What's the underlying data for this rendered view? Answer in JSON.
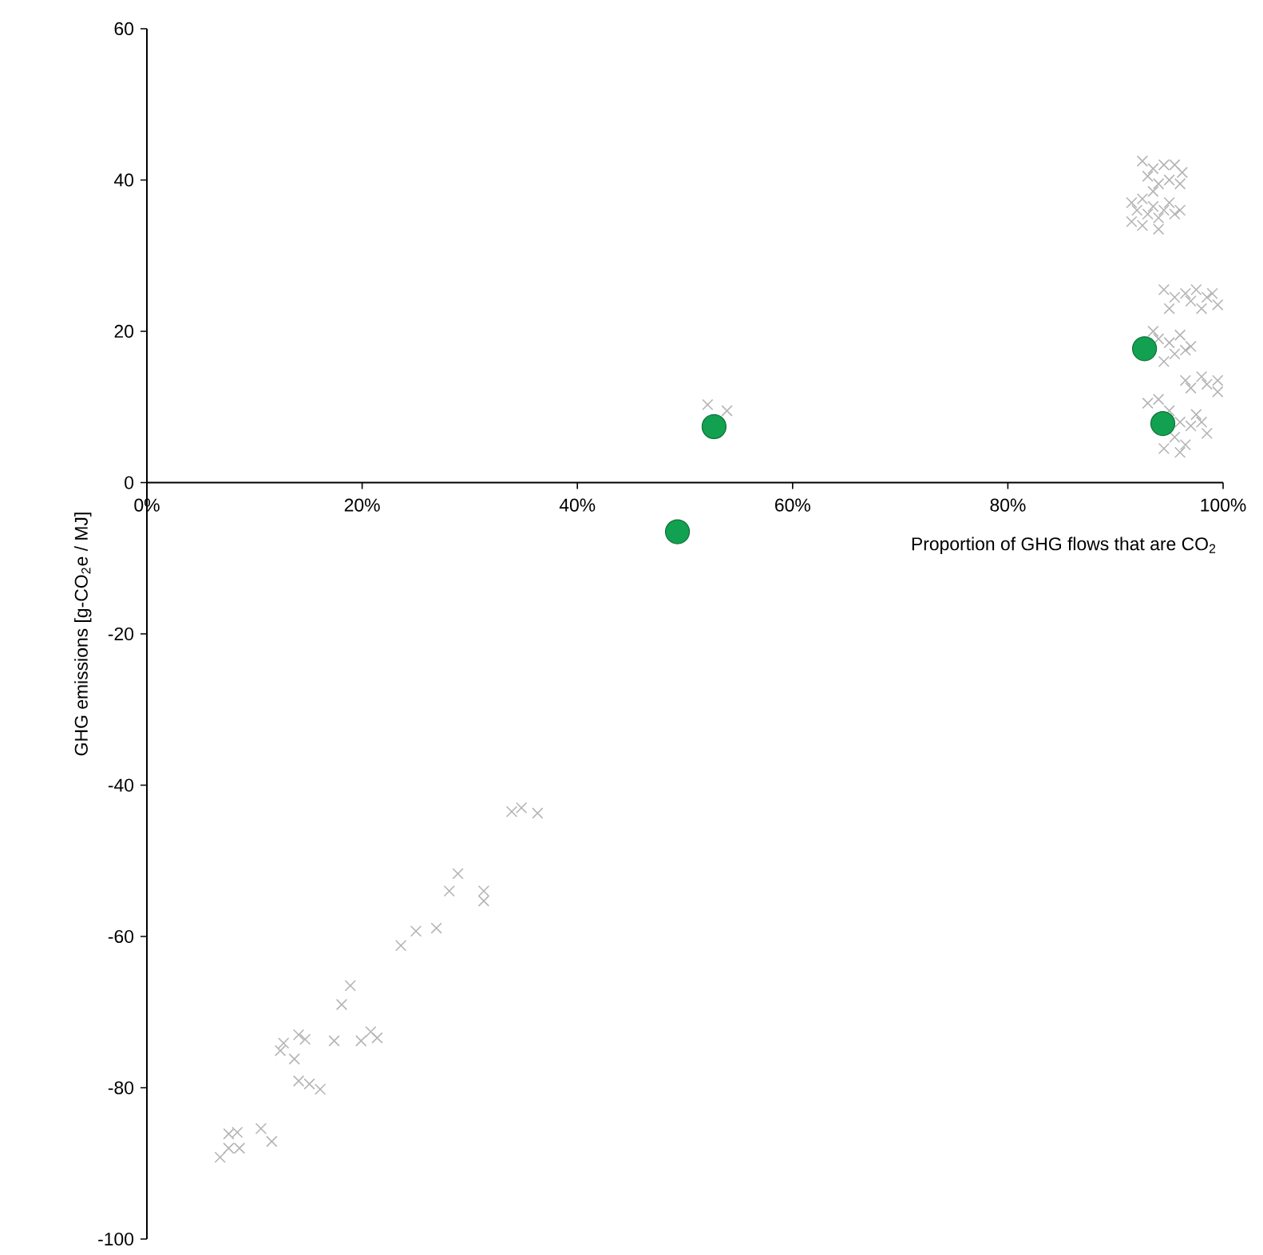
{
  "chart_data": {
    "type": "scatter",
    "xlabel": "Proportion of GHG flows that are CO$_{2}$",
    "ylabel": "GHG emissions [g-CO$_{2}$e / MJ]",
    "xlim": [
      0,
      100
    ],
    "ylim": [
      -100,
      60
    ],
    "xticks": [
      {
        "value": 0,
        "label": "0%"
      },
      {
        "value": 20,
        "label": "20%"
      },
      {
        "value": 40,
        "label": "40%"
      },
      {
        "value": 60,
        "label": "60%"
      },
      {
        "value": 80,
        "label": "80%"
      },
      {
        "value": 100,
        "label": "100%"
      }
    ],
    "yticks": [
      -100,
      -80,
      -60,
      -40,
      -20,
      0,
      20,
      40,
      60
    ],
    "grid": false,
    "series": [
      {
        "color": "#b4b4b4",
        "marker": "cross",
        "x": [
          52.1,
          53.9,
          33.9,
          34.8,
          36.3,
          28.9,
          28.1,
          31.3,
          31.3,
          23.6,
          25.0,
          26.9,
          18.9,
          18.1,
          14.1,
          14.7,
          12.7,
          12.4,
          13.7,
          17.4,
          19.9,
          20.8,
          21.4,
          14.1,
          15.1,
          16.1,
          10.6,
          11.6,
          7.6,
          8.4,
          8.6,
          7.6,
          6.8,
          92.5,
          93.5,
          94.5,
          95.5,
          96.2,
          93,
          94,
          95,
          96,
          93.5,
          91.5,
          92,
          92.5,
          93,
          93.5,
          94,
          94.5,
          95,
          95.5,
          96,
          91.5,
          92.5,
          94,
          94.5,
          95.5,
          96.5,
          97,
          97.5,
          98.5,
          99,
          99.5,
          98,
          95,
          93.5,
          94,
          95,
          95.5,
          96,
          96.5,
          94.5,
          97,
          96.5,
          97,
          98,
          98.5,
          99.5,
          99.5,
          93,
          94,
          95,
          95.5,
          96,
          96.5,
          97,
          97.5,
          98,
          94.5,
          96,
          98.5
        ],
        "values": [
          10.3,
          9.5,
          -43.5,
          -43.0,
          -43.7,
          -51.7,
          -54.0,
          -54.0,
          -55.3,
          -61.2,
          -59.3,
          -58.9,
          -66.5,
          -69.0,
          -73.0,
          -73.6,
          -74.1,
          -75.1,
          -76.2,
          -73.8,
          -73.8,
          -72.6,
          -73.4,
          -79.1,
          -79.5,
          -80.2,
          -85.4,
          -87.1,
          -86.1,
          -85.9,
          -88.0,
          -88.0,
          -89.2,
          42.5,
          41.5,
          42,
          42,
          41,
          40.5,
          39.5,
          40,
          39.5,
          38.5,
          37,
          36,
          37.5,
          35.5,
          36.5,
          35,
          36,
          37,
          35.5,
          36,
          34.5,
          34,
          33.5,
          25.5,
          24.5,
          25,
          24,
          25.5,
          24.5,
          25,
          23.5,
          23,
          23,
          20,
          19,
          18.5,
          17,
          19.5,
          17.5,
          16,
          18,
          13.5,
          12.5,
          14,
          13,
          13.5,
          12,
          10.5,
          11,
          9.5,
          6,
          8,
          5,
          7.5,
          9,
          8,
          4.5,
          4,
          6.5
        ]
      },
      {
        "color": "#12a150",
        "marker": "circle",
        "x": [
          52.7,
          49.3,
          92.7,
          94.4
        ],
        "values": [
          7.4,
          -6.5,
          17.7,
          7.8
        ]
      }
    ]
  }
}
